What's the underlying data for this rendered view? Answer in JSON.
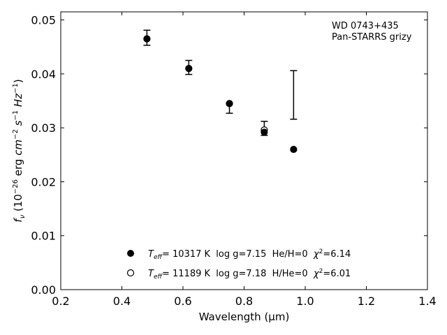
{
  "chart_data": {
    "type": "scatter",
    "xlabel": "Wavelength (μm)",
    "ylabel_parts": {
      "f": "f",
      "nu": "ν",
      "open": " (10",
      "exp1": "−26",
      "erg": " erg ",
      "cm": "cm",
      "exp2": "−2",
      "s": " s",
      "exp3": "−1",
      "hz": " Hz",
      "exp4": "−1",
      "close": ")"
    },
    "xlim": [
      0.2,
      1.4
    ],
    "ylim": [
      0.0,
      0.0515
    ],
    "xticks": [
      0.2,
      0.4,
      0.6,
      0.8,
      1.0,
      1.2,
      1.4
    ],
    "xtick_labels": [
      "0.2",
      "0.4",
      "0.6",
      "0.8",
      "1.0",
      "1.2",
      "1.4"
    ],
    "yticks": [
      0.0,
      0.01,
      0.02,
      0.03,
      0.04,
      0.05
    ],
    "ytick_labels": [
      "0.00",
      "0.01",
      "0.02",
      "0.03",
      "0.04",
      "0.05"
    ],
    "grid": false,
    "annotation": {
      "line1": "WD 0743+435",
      "line2": "Pan-STARRS grizy"
    },
    "observed": {
      "x": [
        0.482,
        0.619,
        0.752,
        0.866,
        0.962
      ],
      "y": [
        0.0466,
        0.0412,
        0.034,
        0.0299,
        0.0361
      ],
      "yerr_low": [
        0.0013,
        0.0013,
        0.0013,
        0.0013,
        0.0045
      ],
      "yerr_high": [
        0.0015,
        0.0013,
        0.0006,
        0.0013,
        0.0045
      ]
    },
    "series": [
      {
        "marker": "filled",
        "x": [
          0.482,
          0.619,
          0.752,
          0.866,
          0.962
        ],
        "y": [
          0.0465,
          0.041,
          0.0345,
          0.0292,
          0.026
        ]
      },
      {
        "marker": "open",
        "x": [
          0.482,
          0.619,
          0.752,
          0.866,
          0.962
        ],
        "y": [
          0.0465,
          0.041,
          0.0345,
          0.0296,
          0.026
        ]
      }
    ],
    "legend": [
      {
        "marker": "filled",
        "T": "T",
        "eff": "eff",
        "mid": "= 10317 K  log g=7.15  He/H=0  ",
        "chi": "χ",
        "two": "2",
        "end": "=6.14"
      },
      {
        "marker": "open",
        "T": "T",
        "eff": "eff",
        "mid": "= 11189 K  log g=7.18  H/He=0  ",
        "chi": "χ",
        "two": "2",
        "end": "=6.01"
      }
    ],
    "legend_position": "lower-center"
  }
}
